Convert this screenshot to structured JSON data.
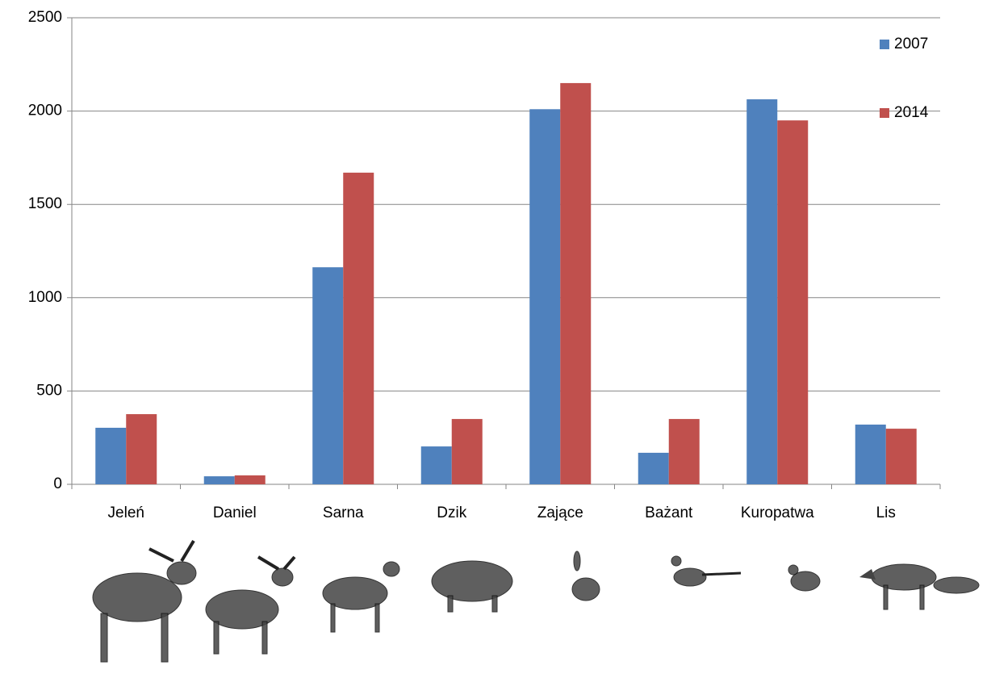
{
  "chart_data": {
    "type": "bar",
    "categories": [
      "Jeleń",
      "Daniel",
      "Sarna",
      "Dzik",
      "Zające",
      "Bażant",
      "Kuropatwa",
      "Lis"
    ],
    "series": [
      {
        "name": "2007",
        "color": "#4f81bd",
        "values": [
          303,
          43,
          1163,
          203,
          2010,
          169,
          2063,
          320
        ]
      },
      {
        "name": "2014",
        "color": "#c0504d",
        "values": [
          376,
          48,
          1670,
          350,
          2150,
          350,
          1950,
          298
        ]
      }
    ],
    "ylim": [
      0,
      2500
    ],
    "yticks": [
      0,
      500,
      1000,
      1500,
      2000,
      2500
    ],
    "grid": true,
    "legend": "top-right"
  }
}
